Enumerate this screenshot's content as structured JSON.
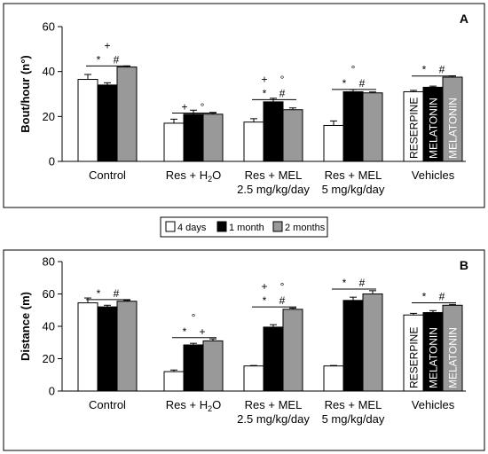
{
  "legend": {
    "items": [
      {
        "label": "4 days",
        "color": "#ffffff"
      },
      {
        "label": "1 month",
        "color": "#000000"
      },
      {
        "label": "2 months",
        "color": "#999999"
      }
    ]
  },
  "chart_data": [
    {
      "type": "bar",
      "panel_label": "A",
      "ylabel": "Bout/hour (n°)",
      "xlabel": "",
      "ylim": [
        0,
        60
      ],
      "yticks": [
        0,
        20,
        40,
        60
      ],
      "categories": [
        {
          "lines": [
            "Control"
          ]
        },
        {
          "lines": [
            "Res + H₂O"
          ]
        },
        {
          "lines": [
            "Res + MEL",
            "2.5 mg/kg/day"
          ]
        },
        {
          "lines": [
            "Res + MEL",
            "5 mg/kg/day"
          ]
        },
        {
          "lines": [
            "Vehicles"
          ]
        }
      ],
      "series": [
        {
          "values": [
            36.5,
            17,
            17.5,
            16,
            31
          ],
          "errors": [
            2.2,
            1.8,
            1.5,
            2.0,
            0.6
          ]
        },
        {
          "values": [
            34,
            21,
            26.5,
            31,
            33
          ],
          "errors": [
            1.0,
            1.8,
            1.6,
            1.0,
            0.5
          ]
        },
        {
          "values": [
            42,
            21,
            23,
            30.5,
            37.5
          ],
          "errors": [
            0.5,
            0.8,
            0.8,
            0.4,
            0.6
          ]
        }
      ],
      "vehicle_labels": [
        "RESERPINE",
        "MELATONIN",
        "MELATONIN"
      ],
      "significance": [
        {
          "group": 0,
          "rows": [
            [
              "+"
            ],
            [
              "*",
              "#"
            ]
          ],
          "line_y": 42.5
        },
        {
          "group": 1,
          "rows": [
            [
              "+",
              "°"
            ]
          ],
          "line_y": 21.5
        },
        {
          "group": 2,
          "rows": [
            [
              "+",
              "°"
            ],
            [
              "*",
              "#"
            ]
          ],
          "line_y": 27.5
        },
        {
          "group": 3,
          "rows": [
            [
              "°"
            ],
            [
              "*",
              "#"
            ]
          ],
          "line_y": 32
        },
        {
          "group": 4,
          "rows": [
            [
              "*",
              "#"
            ]
          ],
          "line_y": 38
        }
      ]
    },
    {
      "type": "bar",
      "panel_label": "B",
      "ylabel": "Distance (m)",
      "xlabel": "",
      "ylim": [
        0,
        80
      ],
      "yticks": [
        0,
        20,
        40,
        60,
        80
      ],
      "categories": [
        {
          "lines": [
            "Control"
          ]
        },
        {
          "lines": [
            "Res + H₂O"
          ]
        },
        {
          "lines": [
            "Res + MEL",
            "2.5 mg/kg/day"
          ]
        },
        {
          "lines": [
            "Res + MEL",
            "5 mg/kg/day"
          ]
        },
        {
          "lines": [
            "Vehicles"
          ]
        }
      ],
      "series": [
        {
          "values": [
            54.5,
            12,
            15.5,
            15.5,
            47
          ],
          "errors": [
            3.0,
            1.0,
            0.3,
            0.3,
            1.0
          ]
        },
        {
          "values": [
            52,
            28.5,
            39.5,
            56,
            48.5
          ],
          "errors": [
            1.0,
            1.0,
            1.5,
            2.0,
            1.2
          ]
        },
        {
          "values": [
            55.5,
            31,
            50.5,
            60,
            53
          ],
          "errors": [
            0.5,
            1.2,
            0.8,
            2.0,
            0.5
          ]
        }
      ],
      "vehicle_labels": [
        "RESERPINE",
        "MELATONIN",
        "MELATONIN"
      ],
      "significance": [
        {
          "group": 0,
          "rows": [
            [
              "*",
              "#"
            ]
          ],
          "line_y": 56.5
        },
        {
          "group": 1,
          "rows": [
            [
              "°"
            ],
            [
              "*",
              "+"
            ]
          ],
          "line_y": 33
        },
        {
          "group": 2,
          "rows": [
            [
              "+",
              "°"
            ],
            [
              "*",
              "#"
            ]
          ],
          "line_y": 52
        },
        {
          "group": 3,
          "rows": [
            [
              "*",
              "#"
            ]
          ],
          "line_y": 63
        },
        {
          "group": 4,
          "rows": [
            [
              "*",
              "#"
            ]
          ],
          "line_y": 54.5
        }
      ]
    }
  ]
}
